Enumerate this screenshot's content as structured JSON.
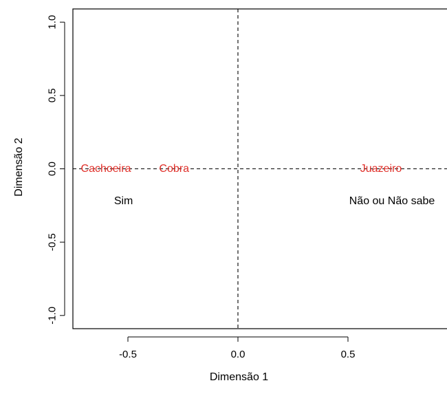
{
  "chart_data": {
    "type": "scatter",
    "xlabel": "Dimensão 1",
    "ylabel": "Dimensão 2",
    "xlim": [
      -0.75,
      0.95
    ],
    "ylim": [
      -1.09,
      1.09
    ],
    "x_ticks": [
      -0.5,
      0.0,
      0.5
    ],
    "x_tick_labels": [
      "-0.5",
      "0.0",
      "0.5"
    ],
    "y_ticks": [
      -1.0,
      -0.5,
      0.0,
      0.5,
      1.0
    ],
    "y_tick_labels": [
      "-1.0",
      "-0.5",
      "0.0",
      "0.5",
      "1.0"
    ],
    "reference_lines": {
      "x": 0,
      "y": 0,
      "style": "dashed"
    },
    "grid": false,
    "series": [
      {
        "color": "#e0302a",
        "points": [
          {
            "label": "Cachoeira",
            "x": -0.6,
            "y": 0.0
          },
          {
            "label": "Cobra",
            "x": -0.29,
            "y": 0.0
          },
          {
            "label": "Juazeiro",
            "x": 0.65,
            "y": 0.0
          }
        ]
      },
      {
        "color": "#000000",
        "points": [
          {
            "label": "Sim",
            "x": -0.52,
            "y": -0.22
          },
          {
            "label": "Não ou Não sabe",
            "x": 0.7,
            "y": -0.22
          }
        ]
      }
    ]
  }
}
